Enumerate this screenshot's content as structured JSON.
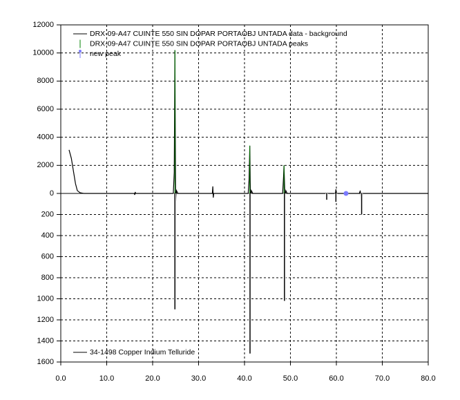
{
  "chart_data": [
    {
      "type": "line",
      "xlim": [
        0,
        80
      ],
      "ylim": [
        0,
        12000
      ],
      "yticks": [
        0,
        2000,
        4000,
        6000,
        8000,
        10000,
        12000
      ],
      "grid": true,
      "series": [
        {
          "name": "DRX-09-A47 CUINTE 550 SIN DOPAR PORTAOBJ UNTADA data - background",
          "color": "#000000",
          "style": "line",
          "x": [
            1.8,
            2.3,
            2.8,
            3.2,
            3.6,
            4.2,
            5,
            16.0,
            16.1,
            16.2,
            16.3,
            24.5,
            24.7,
            24.85,
            25.0,
            25.2,
            25.5,
            33.0,
            33.1,
            33.2,
            33.3,
            40.8,
            41.0,
            41.15,
            41.3,
            41.5,
            41.8,
            48.3,
            48.5,
            48.6,
            48.8,
            49.0,
            49.3,
            57.9,
            58.0,
            58.1,
            59.8,
            59.9,
            60.0,
            60.1,
            65.0,
            65.2,
            65.4,
            65.6,
            65.8,
            80
          ],
          "values": [
            3100,
            2500,
            1500,
            700,
            200,
            50,
            0,
            0,
            -100,
            100,
            0,
            0,
            1500,
            10200,
            -800,
            200,
            0,
            0,
            500,
            -300,
            0,
            0,
            1000,
            3400,
            -400,
            200,
            0,
            0,
            1200,
            2000,
            -300,
            200,
            0,
            0,
            -300,
            0,
            0,
            300,
            -400,
            0,
            0,
            200,
            -800,
            -200,
            0,
            0
          ]
        },
        {
          "name": "DRX-09-A47 CUINTE 550 SIN DOPAR PORTAOBJ UNTADA peaks",
          "color": "#008000",
          "style": "stick",
          "x": [
            24.85,
            41.15,
            48.6
          ],
          "values": [
            10200,
            3400,
            2000
          ]
        },
        {
          "name": "new peak",
          "color": "#7b7bff",
          "style": "marker",
          "x": [
            62.1
          ],
          "values": [
            0
          ]
        }
      ]
    },
    {
      "type": "stick",
      "xlim": [
        0,
        80
      ],
      "xticks": [
        {
          "value": 0,
          "label": "0.0"
        },
        {
          "value": 10,
          "label": "10.0"
        },
        {
          "value": 20,
          "label": "20.0"
        },
        {
          "value": 30,
          "label": "30.0"
        },
        {
          "value": 40,
          "label": "40.0"
        },
        {
          "value": 50,
          "label": "50.0"
        },
        {
          "value": 60,
          "label": "60.0"
        },
        {
          "value": 70,
          "label": "70.0"
        },
        {
          "value": 80,
          "label": "80.0"
        }
      ],
      "ylim": [
        0,
        1600
      ],
      "yticks": [
        200,
        400,
        600,
        800,
        1000,
        1200,
        1400,
        1600
      ],
      "grid": true,
      "series": [
        {
          "name": "34-1498 Copper Indium Telluride",
          "color": "#000000",
          "x": [
            24.85,
            41.2,
            48.7,
            57.9,
            59.9,
            65.5
          ],
          "values": [
            1100,
            1520,
            1020,
            60,
            80,
            200
          ]
        }
      ]
    }
  ]
}
